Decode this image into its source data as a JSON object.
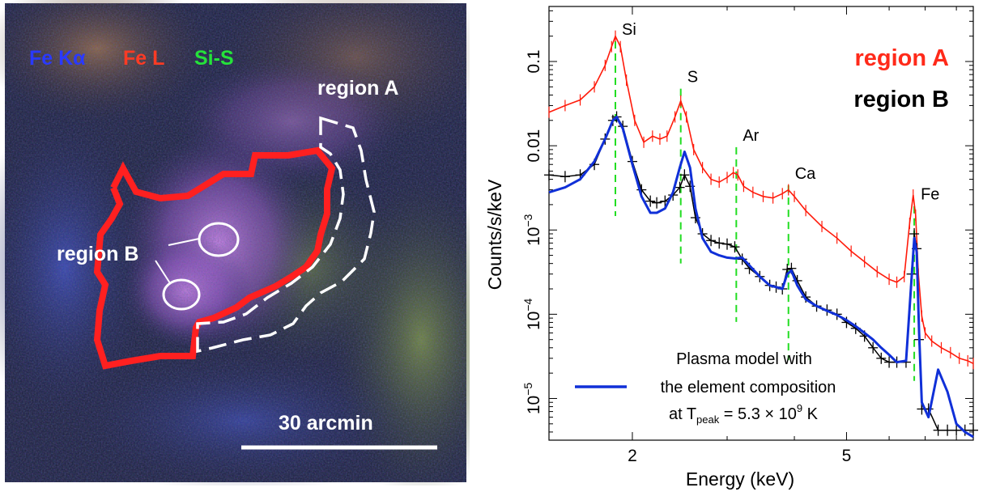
{
  "image_panel": {
    "bands": [
      {
        "label": "Fe Kα",
        "color": "#2a39ff"
      },
      {
        "label": "Fe L",
        "color": "#ff3b24"
      },
      {
        "label": "Si-S",
        "color": "#25e23a"
      }
    ],
    "region_a_label": "region A",
    "region_b_label": "region B",
    "scalebar_label": "30 arcmin",
    "outline_color": "#ff2020"
  },
  "legend": {
    "region_a": "region A",
    "region_b": "region B",
    "region_a_color": "#ff2a1a",
    "region_b_color": "#000000",
    "model_line_1": "Plasma model with",
    "model_line_2": "the element composition",
    "model_line_3_prefix": "at T",
    "model_line_3_sub": "peak",
    "model_line_3_rest": " = 5.3 × 10",
    "model_line_3_exp": "9",
    "model_line_3_unit": " K",
    "model_color": "#1030d8"
  },
  "chart_data": {
    "type": "line",
    "xlabel": "Energy (keV)",
    "ylabel": "Counts/s/keV",
    "xscale": "log",
    "yscale": "log",
    "xlim": [
      1.4,
      8.6
    ],
    "ylim": [
      3.2e-06,
      0.45
    ],
    "xticks": [
      {
        "value": 2,
        "label": "2"
      },
      {
        "value": 5,
        "label": "5"
      }
    ],
    "yticks": [
      {
        "value": 0.1,
        "label": "0.1"
      },
      {
        "value": 0.01,
        "label": "0.01"
      },
      {
        "value": 0.001,
        "label": "10",
        "exp": "−3"
      },
      {
        "value": 0.0001,
        "label": "10",
        "exp": "−4"
      },
      {
        "value": 1e-05,
        "label": "10",
        "exp": "−5"
      }
    ],
    "lines": [
      {
        "label": "Si",
        "energy": 1.86,
        "label_y": 0.19
      },
      {
        "label": "S",
        "energy": 2.46,
        "label_y": 0.052
      },
      {
        "label": "Ar",
        "energy": 3.12,
        "label_y": 0.0105
      },
      {
        "label": "Ca",
        "energy": 3.9,
        "label_y": 0.0037
      },
      {
        "label": "Fe",
        "energy": 6.68,
        "label_y": 0.0021
      }
    ],
    "line_marker_color": "#22dd22",
    "series": [
      {
        "name": "region A",
        "color": "#ff1a0a",
        "x": [
          1.4,
          1.5,
          1.6,
          1.7,
          1.78,
          1.83,
          1.86,
          1.9,
          1.95,
          2.02,
          2.1,
          2.18,
          2.25,
          2.32,
          2.4,
          2.46,
          2.52,
          2.6,
          2.7,
          2.8,
          2.9,
          3.0,
          3.08,
          3.14,
          3.22,
          3.35,
          3.5,
          3.65,
          3.8,
          3.9,
          4.0,
          4.2,
          4.5,
          4.8,
          5.1,
          5.4,
          5.7,
          6.0,
          6.2,
          6.4,
          6.55,
          6.65,
          6.72,
          6.8,
          6.9,
          7.0,
          7.2,
          7.5,
          7.8,
          8.1,
          8.4,
          8.6
        ],
        "y": [
          0.025,
          0.03,
          0.035,
          0.05,
          0.09,
          0.15,
          0.2,
          0.15,
          0.06,
          0.02,
          0.011,
          0.013,
          0.012,
          0.013,
          0.022,
          0.034,
          0.022,
          0.009,
          0.0055,
          0.004,
          0.0037,
          0.0042,
          0.0048,
          0.0045,
          0.0033,
          0.0028,
          0.0025,
          0.0024,
          0.0027,
          0.003,
          0.0025,
          0.0017,
          0.0011,
          0.0008,
          0.00056,
          0.00042,
          0.00032,
          0.00026,
          0.00024,
          0.00028,
          0.0012,
          0.0026,
          0.0015,
          0.0003,
          9.5e-05,
          6e-05,
          4.8e-05,
          4e-05,
          3.5e-05,
          3e-05,
          2.8e-05,
          2.6e-05
        ]
      },
      {
        "name": "region B",
        "color": "#000000",
        "x": [
          1.4,
          1.5,
          1.6,
          1.7,
          1.78,
          1.84,
          1.87,
          1.92,
          2.0,
          2.08,
          2.16,
          2.22,
          2.3,
          2.38,
          2.45,
          2.5,
          2.56,
          2.62,
          2.7,
          2.8,
          2.9,
          3.0,
          3.1,
          3.2,
          3.3,
          3.45,
          3.6,
          3.7,
          3.8,
          3.88,
          3.95,
          4.05,
          4.2,
          4.4,
          4.6,
          4.8,
          5.0,
          5.2,
          5.4,
          5.6,
          5.8,
          6.0,
          6.2,
          6.45,
          6.6,
          6.68,
          6.75,
          6.82,
          6.9,
          7.1,
          7.4,
          7.7,
          8.0,
          8.3,
          8.6
        ],
        "y": [
          0.0045,
          0.0043,
          0.0045,
          0.006,
          0.012,
          0.02,
          0.022,
          0.017,
          0.0065,
          0.003,
          0.0022,
          0.0021,
          0.0022,
          0.0026,
          0.0032,
          0.0045,
          0.0033,
          0.0014,
          0.0009,
          0.00075,
          0.0007,
          0.00068,
          0.00063,
          0.00045,
          0.00035,
          0.00028,
          0.00022,
          0.00021,
          0.0002,
          0.00034,
          0.00035,
          0.00025,
          0.00016,
          0.000125,
          0.000112,
          0.0001,
          8e-05,
          6.8e-05,
          5.5e-05,
          4e-05,
          3e-05,
          2.7e-05,
          2.7e-05,
          2.7e-05,
          0.0003,
          0.0009,
          0.0006,
          5e-05,
          7.5e-06,
          7.5e-06,
          4.2e-06,
          4.2e-06,
          4.2e-06,
          4.2e-06,
          4.2e-06
        ]
      },
      {
        "name": "Plasma model with the element composition at Tpeak = 5.3 × 10⁹ K",
        "color": "#1030d8",
        "x": [
          1.4,
          1.5,
          1.6,
          1.7,
          1.78,
          1.84,
          1.87,
          1.92,
          2.0,
          2.08,
          2.16,
          2.22,
          2.3,
          2.38,
          2.45,
          2.5,
          2.56,
          2.62,
          2.7,
          2.8,
          2.9,
          3.0,
          3.1,
          3.2,
          3.3,
          3.45,
          3.6,
          3.7,
          3.8,
          3.88,
          3.95,
          4.05,
          4.2,
          4.4,
          4.6,
          4.8,
          5.0,
          5.2,
          5.4,
          5.6,
          5.8,
          6.0,
          6.2,
          6.45,
          6.6,
          6.68,
          6.75,
          6.82,
          6.9,
          7.1,
          7.4,
          7.7,
          8.0,
          8.3,
          8.6
        ],
        "y": [
          0.0028,
          0.0032,
          0.004,
          0.0065,
          0.012,
          0.02,
          0.022,
          0.016,
          0.006,
          0.0025,
          0.0016,
          0.0016,
          0.0018,
          0.0028,
          0.0055,
          0.0085,
          0.0055,
          0.0018,
          0.0008,
          0.00055,
          0.0005,
          0.00047,
          0.00046,
          0.00047,
          0.00038,
          0.00028,
          0.00022,
          0.00021,
          0.0002,
          0.0003,
          0.00033,
          0.00022,
          0.00015,
          0.000125,
          0.00011,
          9.8e-05,
          8.5e-05,
          7.2e-05,
          6e-05,
          5e-05,
          4e-05,
          3.3e-05,
          2.7e-05,
          2.8e-05,
          0.00025,
          0.0008,
          0.00055,
          6e-05,
          9e-06,
          6e-06,
          2.2e-05,
          1.2e-05,
          5e-06,
          4e-06,
          3.5e-06
        ]
      }
    ]
  }
}
